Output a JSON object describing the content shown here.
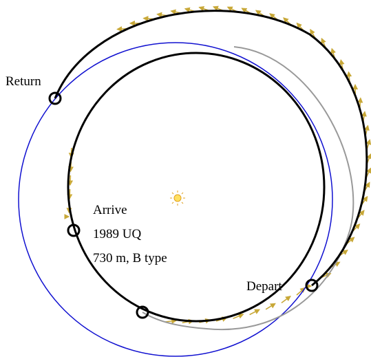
{
  "labels": {
    "return": "Return",
    "arrive": "Arrive",
    "asteroid": "1989 UQ",
    "asteroid_info": "730 m, B type",
    "depart": "Depart"
  }
}
